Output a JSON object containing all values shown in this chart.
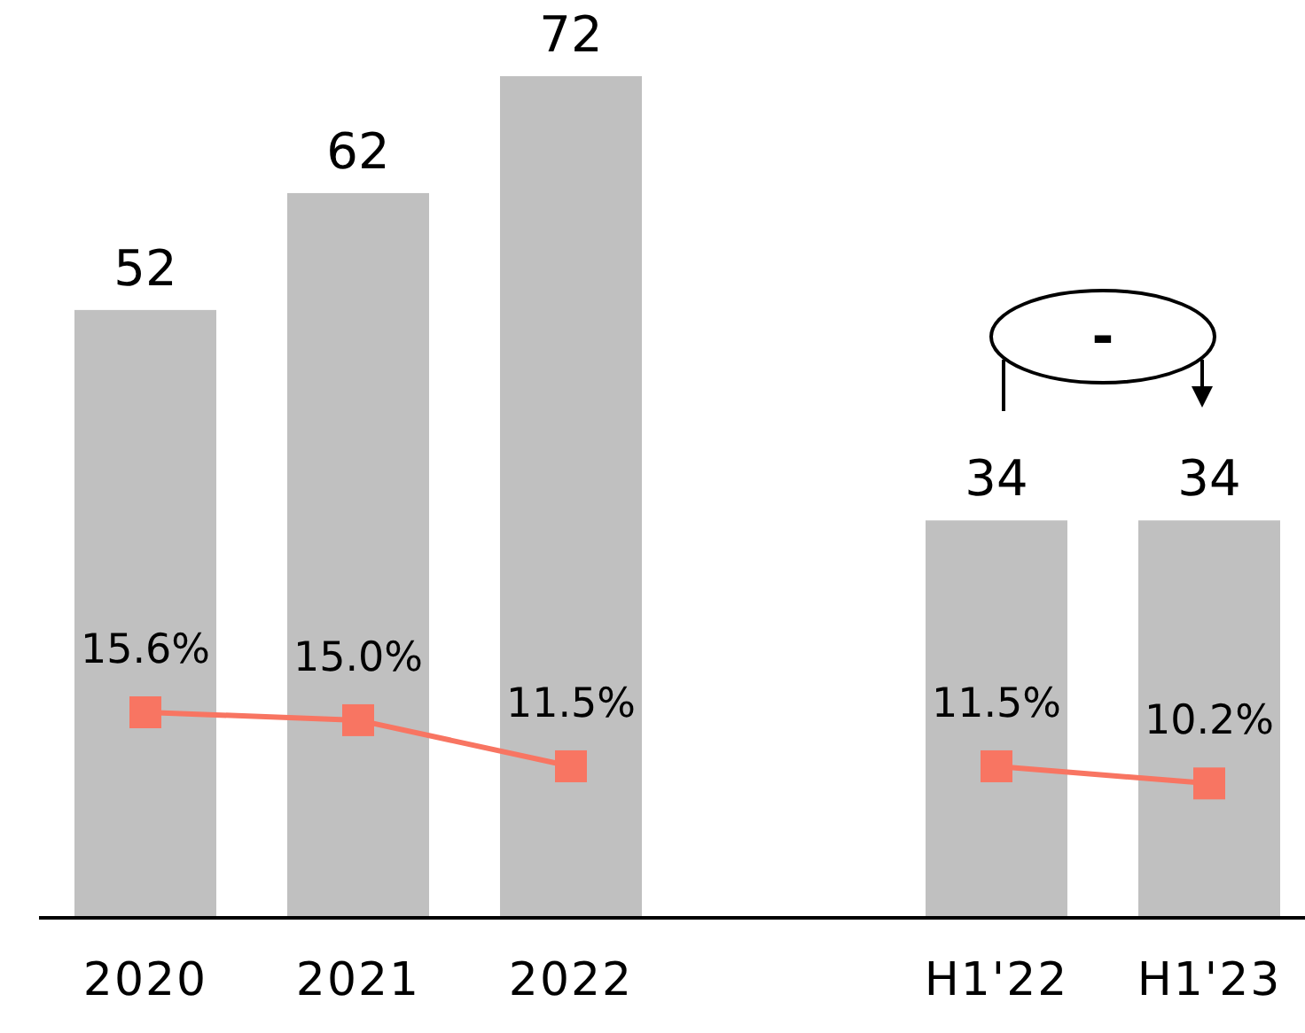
{
  "chart_data": {
    "type": "bar",
    "categories": [
      "2020",
      "2021",
      "2022",
      null,
      "H1'22",
      "H1'23"
    ],
    "series": [
      {
        "color": "#c0c0c0",
        "values": [
          52,
          62,
          72,
          null,
          34,
          34
        ]
      },
      {
        "type": "line",
        "axis": "y2",
        "color": "#f87562",
        "values": [
          15.6,
          15.0,
          11.5,
          null,
          11.5,
          10.2
        ],
        "value_labels": [
          "15.6%",
          "15.0%",
          "11.5%",
          null,
          "11.5%",
          "10.2%"
        ]
      }
    ],
    "relative": false,
    "data_labels": true,
    "tick_labels": "x",
    "marker": "square",
    "grid": false,
    "annotations": [
      "-"
    ]
  }
}
